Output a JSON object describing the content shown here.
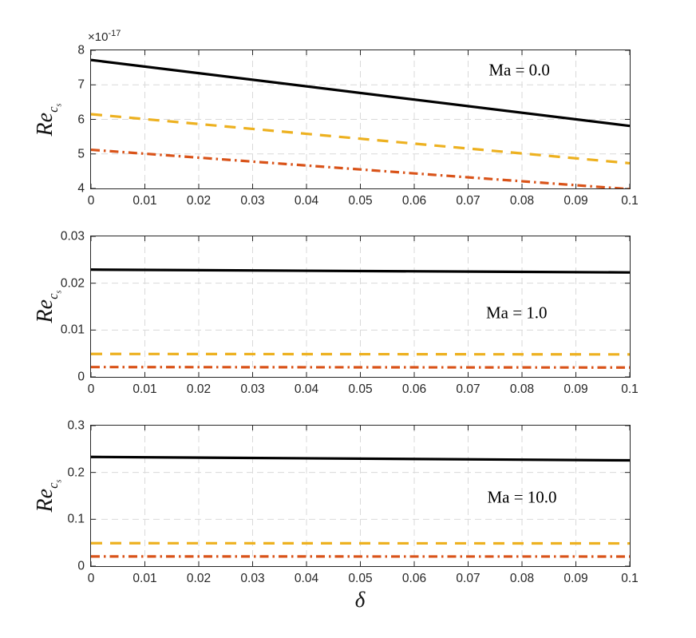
{
  "figure": {
    "background": "#ffffff",
    "axis_color": "#262626",
    "grid_color": "#d9d9d9"
  },
  "chart_data": [
    {
      "type": "line",
      "annotation": "Ma = 0.0",
      "annotation_pos": {
        "x": 0.795,
        "y": 0.145
      },
      "ylabel": {
        "base": "Re",
        "sub": "c",
        "subsub": "s"
      },
      "y_exponent": {
        "base": "×10",
        "exp": "-17"
      },
      "xlim": [
        0,
        0.1
      ],
      "ylim": [
        4,
        8
      ],
      "xticks": [
        0,
        0.01,
        0.02,
        0.03,
        0.04,
        0.05,
        0.06,
        0.07,
        0.08,
        0.09,
        0.1
      ],
      "xtick_labels": [
        "0",
        "0.01",
        "0.02",
        "0.03",
        "0.04",
        "0.05",
        "0.06",
        "0.07",
        "0.08",
        "0.09",
        "0.1"
      ],
      "yticks": [
        4,
        5,
        6,
        7,
        8
      ],
      "ytick_labels": [
        "4",
        "5",
        "6",
        "7",
        "8"
      ],
      "grid": true,
      "series": [
        {
          "name": "black-solid",
          "color": "#000000",
          "style": "solid",
          "x": [
            0,
            0.1
          ],
          "y": [
            7.72,
            5.81
          ]
        },
        {
          "name": "yellow-dashed",
          "color": "#EDB120",
          "style": "dashed",
          "x": [
            0,
            0.1
          ],
          "y": [
            6.15,
            4.73
          ]
        },
        {
          "name": "orange-dashdot",
          "color": "#D95319",
          "style": "dashdot",
          "x": [
            0,
            0.1
          ],
          "y": [
            5.12,
            3.98
          ]
        }
      ]
    },
    {
      "type": "line",
      "annotation": "Ma = 1.0",
      "annotation_pos": {
        "x": 0.79,
        "y": 0.545
      },
      "ylabel": {
        "base": "Re",
        "sub": "c",
        "subsub": "s"
      },
      "xlim": [
        0,
        0.1
      ],
      "ylim": [
        0,
        0.03
      ],
      "xticks": [
        0,
        0.01,
        0.02,
        0.03,
        0.04,
        0.05,
        0.06,
        0.07,
        0.08,
        0.09,
        0.1
      ],
      "xtick_labels": [
        "0",
        "0.01",
        "0.02",
        "0.03",
        "0.04",
        "0.05",
        "0.06",
        "0.07",
        "0.08",
        "0.09",
        "0.1"
      ],
      "yticks": [
        0,
        0.01,
        0.02,
        0.03
      ],
      "ytick_labels": [
        "0",
        "0.01",
        "0.02",
        "0.03"
      ],
      "grid": true,
      "series": [
        {
          "name": "black-solid",
          "color": "#000000",
          "style": "solid",
          "x": [
            0,
            0.1
          ],
          "y": [
            0.0229,
            0.0223
          ]
        },
        {
          "name": "yellow-dashed",
          "color": "#EDB120",
          "style": "dashed",
          "x": [
            0,
            0.1
          ],
          "y": [
            0.0049,
            0.0048
          ]
        },
        {
          "name": "orange-dashdot",
          "color": "#D95319",
          "style": "dashdot",
          "x": [
            0,
            0.1
          ],
          "y": [
            0.0021,
            0.002
          ]
        }
      ]
    },
    {
      "type": "line",
      "annotation": "Ma = 10.0",
      "annotation_pos": {
        "x": 0.8,
        "y": 0.51
      },
      "ylabel": {
        "base": "Re",
        "sub": "c",
        "subsub": "s"
      },
      "xlabel": "δ",
      "xlim": [
        0,
        0.1
      ],
      "ylim": [
        0,
        0.3
      ],
      "xticks": [
        0,
        0.01,
        0.02,
        0.03,
        0.04,
        0.05,
        0.06,
        0.07,
        0.08,
        0.09,
        0.1
      ],
      "xtick_labels": [
        "0",
        "0.01",
        "0.02",
        "0.03",
        "0.04",
        "0.05",
        "0.06",
        "0.07",
        "0.08",
        "0.09",
        "0.1"
      ],
      "yticks": [
        0,
        0.1,
        0.2,
        0.3
      ],
      "ytick_labels": [
        "0",
        "0.1",
        "0.2",
        "0.3"
      ],
      "grid": true,
      "series": [
        {
          "name": "black-solid",
          "color": "#000000",
          "style": "solid",
          "x": [
            0,
            0.1
          ],
          "y": [
            0.2331,
            0.2258
          ]
        },
        {
          "name": "yellow-dashed",
          "color": "#EDB120",
          "style": "dashed",
          "x": [
            0,
            0.1
          ],
          "y": [
            0.049,
            0.0485
          ]
        },
        {
          "name": "orange-dashdot",
          "color": "#D95319",
          "style": "dashdot",
          "x": [
            0,
            0.1
          ],
          "y": [
            0.0207,
            0.0205
          ]
        }
      ]
    }
  ]
}
